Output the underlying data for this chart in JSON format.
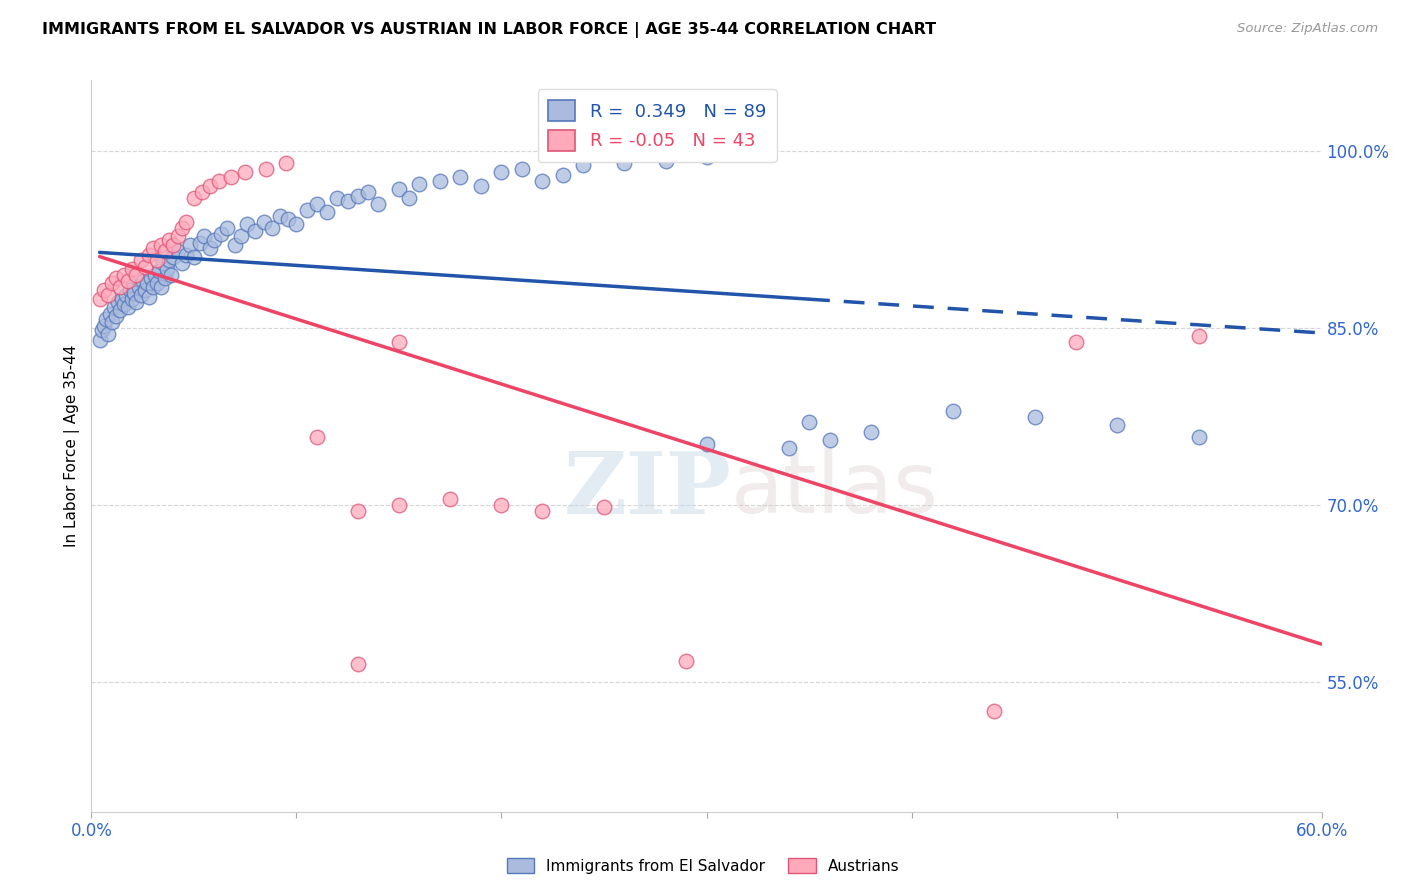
{
  "title": "IMMIGRANTS FROM EL SALVADOR VS AUSTRIAN IN LABOR FORCE | AGE 35-44 CORRELATION CHART",
  "source": "Source: ZipAtlas.com",
  "ylabel": "In Labor Force | Age 35-44",
  "ytick_labels": [
    "100.0%",
    "85.0%",
    "70.0%",
    "55.0%"
  ],
  "ytick_values": [
    1.0,
    0.85,
    0.7,
    0.55
  ],
  "xlim": [
    0.0,
    0.6
  ],
  "ylim": [
    0.44,
    1.06
  ],
  "R_blue": 0.349,
  "N_blue": 89,
  "R_pink": -0.05,
  "N_pink": 43,
  "blue_face": "#aabbdd",
  "blue_edge": "#5577bb",
  "pink_face": "#ffaabb",
  "pink_edge": "#dd5577",
  "trend_blue": "#2255aa",
  "trend_pink": "#ee4466",
  "watermark_zip": "ZIP",
  "watermark_atlas": "atlas",
  "blue_scatter_x": [
    0.004,
    0.005,
    0.006,
    0.007,
    0.008,
    0.009,
    0.01,
    0.011,
    0.012,
    0.013,
    0.014,
    0.015,
    0.016,
    0.017,
    0.018,
    0.019,
    0.02,
    0.021,
    0.022,
    0.023,
    0.024,
    0.025,
    0.026,
    0.027,
    0.028,
    0.029,
    0.03,
    0.031,
    0.032,
    0.033,
    0.034,
    0.035,
    0.036,
    0.037,
    0.038,
    0.039,
    0.04,
    0.042,
    0.044,
    0.046,
    0.048,
    0.05,
    0.053,
    0.055,
    0.058,
    0.06,
    0.063,
    0.066,
    0.07,
    0.073,
    0.076,
    0.08,
    0.084,
    0.088,
    0.092,
    0.096,
    0.1,
    0.105,
    0.11,
    0.115,
    0.12,
    0.125,
    0.13,
    0.135,
    0.14,
    0.15,
    0.155,
    0.16,
    0.17,
    0.18,
    0.19,
    0.2,
    0.21,
    0.22,
    0.23,
    0.24,
    0.26,
    0.28,
    0.3,
    0.32,
    0.35,
    0.38,
    0.42,
    0.46,
    0.5,
    0.54,
    0.3,
    0.34,
    0.36
  ],
  "blue_scatter_y": [
    0.84,
    0.848,
    0.852,
    0.858,
    0.845,
    0.862,
    0.855,
    0.868,
    0.86,
    0.872,
    0.865,
    0.875,
    0.87,
    0.878,
    0.868,
    0.882,
    0.875,
    0.88,
    0.872,
    0.885,
    0.878,
    0.89,
    0.882,
    0.888,
    0.876,
    0.892,
    0.885,
    0.895,
    0.888,
    0.898,
    0.885,
    0.905,
    0.892,
    0.9,
    0.908,
    0.895,
    0.91,
    0.915,
    0.905,
    0.912,
    0.92,
    0.91,
    0.922,
    0.928,
    0.918,
    0.925,
    0.93,
    0.935,
    0.92,
    0.928,
    0.938,
    0.932,
    0.94,
    0.935,
    0.945,
    0.942,
    0.938,
    0.95,
    0.955,
    0.948,
    0.96,
    0.958,
    0.962,
    0.965,
    0.955,
    0.968,
    0.96,
    0.972,
    0.975,
    0.978,
    0.97,
    0.982,
    0.985,
    0.975,
    0.98,
    0.988,
    0.99,
    0.992,
    0.995,
    0.998,
    0.77,
    0.762,
    0.78,
    0.775,
    0.768,
    0.758,
    0.752,
    0.748,
    0.755
  ],
  "pink_scatter_x": [
    0.004,
    0.006,
    0.008,
    0.01,
    0.012,
    0.014,
    0.016,
    0.018,
    0.02,
    0.022,
    0.024,
    0.026,
    0.028,
    0.03,
    0.032,
    0.034,
    0.036,
    0.038,
    0.04,
    0.042,
    0.044,
    0.046,
    0.05,
    0.054,
    0.058,
    0.062,
    0.068,
    0.075,
    0.085,
    0.095,
    0.11,
    0.13,
    0.15,
    0.175,
    0.2,
    0.25,
    0.29,
    0.22,
    0.44,
    0.13,
    0.15,
    0.48,
    0.54
  ],
  "pink_scatter_y": [
    0.875,
    0.882,
    0.878,
    0.888,
    0.892,
    0.885,
    0.895,
    0.89,
    0.9,
    0.895,
    0.908,
    0.902,
    0.912,
    0.918,
    0.908,
    0.92,
    0.915,
    0.925,
    0.92,
    0.928,
    0.935,
    0.94,
    0.96,
    0.965,
    0.97,
    0.975,
    0.978,
    0.982,
    0.985,
    0.99,
    0.758,
    0.695,
    0.7,
    0.705,
    0.7,
    0.698,
    0.568,
    0.695,
    0.525,
    0.565,
    0.838,
    0.838,
    0.843
  ]
}
